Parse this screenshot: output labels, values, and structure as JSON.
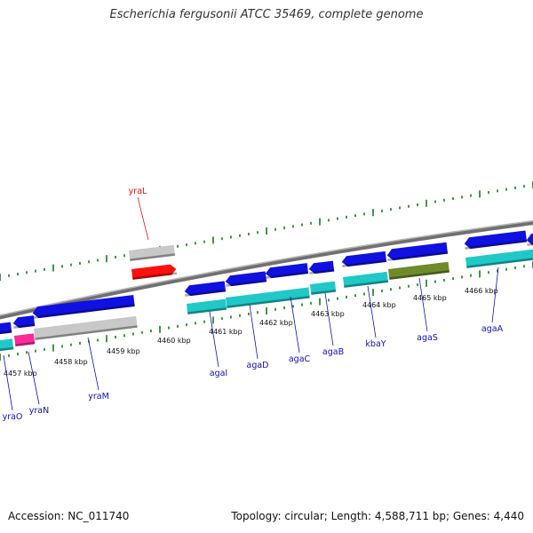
{
  "title": "Escherichia fergusonii ATCC 35469, complete genome",
  "footer": {
    "accession": "Accession: NC_011740",
    "summary": "Topology: circular; Length: 4,588,711 bp; Genes: 4,440"
  },
  "colors": {
    "backbone": "#8a8a8a",
    "tick": "#1a7a1a",
    "cds": "#1010e0",
    "rna": "#ff1010",
    "pseudo": "#c8c8c8",
    "cyan": "#20c8c8",
    "olive": "#6f8a2a",
    "magenta": "#ff2a9a",
    "label_blue": "#1010b0",
    "label_red": "#e01010"
  },
  "scale_labels": [
    "4457 kbp",
    "4458 kbp",
    "4459 kbp",
    "4460 kbp",
    "4461 kbp",
    "4462 kbp",
    "4463 kbp",
    "4464 kbp",
    "4465 kbp",
    "4466 kbp"
  ],
  "genes": [
    {
      "name": "yraO",
      "color": "blue"
    },
    {
      "name": "yraN",
      "color": "blue"
    },
    {
      "name": "yraM",
      "color": "blue"
    },
    {
      "name": "yraL",
      "color": "red"
    },
    {
      "name": "agaI",
      "color": "blue"
    },
    {
      "name": "agaD",
      "color": "blue"
    },
    {
      "name": "agaC",
      "color": "blue"
    },
    {
      "name": "agaB",
      "color": "blue"
    },
    {
      "name": "kbaY",
      "color": "blue"
    },
    {
      "name": "agaS",
      "color": "blue"
    },
    {
      "name": "agaA",
      "color": "blue"
    }
  ]
}
